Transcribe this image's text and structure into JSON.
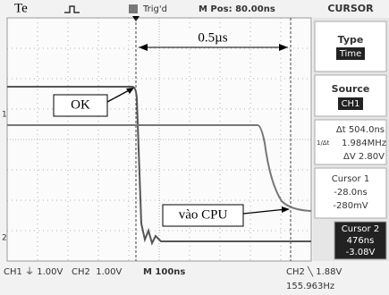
{
  "header": {
    "probe": "Te",
    "trigger": "Trig'd",
    "position": "M Pos: 80.00ns",
    "menu": "CURSOR"
  },
  "annotations": {
    "interval": "0.5µs",
    "ok": "OK",
    "cpu": "vào CPU"
  },
  "channel_markers": {
    "ch1": "1",
    "ch2": "2"
  },
  "menu": {
    "type_label": "Type",
    "type_value": "Time",
    "source_label": "Source",
    "source_value": "CH1",
    "delta_t": "Δt 504.0ns",
    "inv_delta_t_label": "1/Δt",
    "inv_delta_t": "1.984MHz",
    "delta_v": "ΔV 2.80V",
    "cursor1_label": "Cursor 1",
    "cursor1_time": "-28.0ns",
    "cursor1_volt": "-280mV",
    "cursor2_label": "Cursor 2",
    "cursor2_time": "476ns",
    "cursor2_volt": "-3.08V"
  },
  "footer": {
    "ch1": "CH1 ⏚ 1.00V",
    "ch2": "CH2  1.00V",
    "time": "M 100ns",
    "trigger": "CH2 ╲ 1.88V",
    "frequency": "155.963Hz"
  }
}
